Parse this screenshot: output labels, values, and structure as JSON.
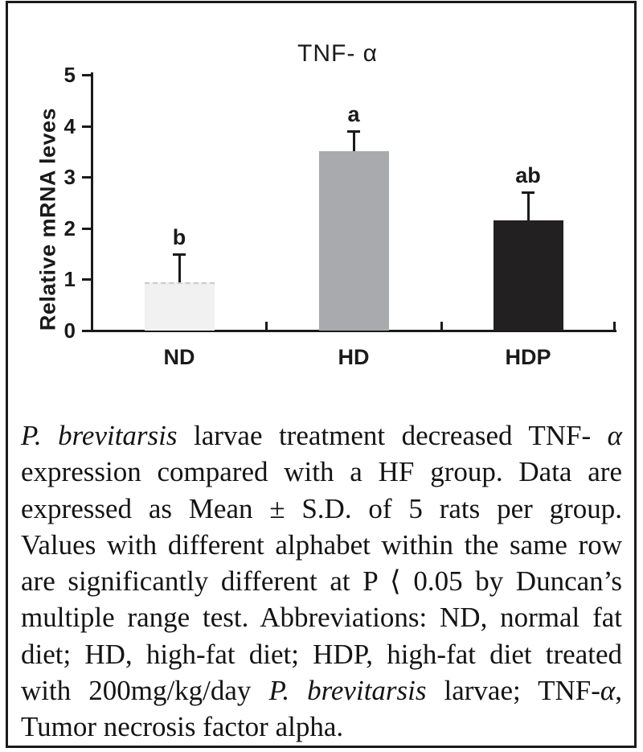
{
  "figure": {
    "background": "#ffffff",
    "border_color": "#1a1a1a"
  },
  "chart_data": {
    "type": "bar",
    "title": "TNF- α",
    "ylabel": "Relative mRNA leves",
    "categories": [
      "ND",
      "HD",
      "HDP"
    ],
    "values": [
      0.95,
      3.5,
      2.15
    ],
    "errors_up": [
      0.55,
      0.4,
      0.55
    ],
    "sig_letters": [
      "b",
      "a",
      "ab"
    ],
    "bar_colors": [
      "#f0f1f0",
      "#a8aaad",
      "#232021"
    ],
    "bar_top_styles": [
      "dotted",
      "solid",
      "solid"
    ],
    "ylim": [
      0,
      5
    ],
    "yticks": [
      0,
      1,
      2,
      3,
      4,
      5
    ],
    "grid": false,
    "legend": "none",
    "axis_color": "#1a1a1a"
  },
  "caption": {
    "lines": [
      [
        {
          "t": "P. brevitarsis",
          "i": true
        },
        {
          "t": " larvae treatment decreased TNF- ",
          "i": false
        },
        {
          "t": "α",
          "i": true
        }
      ],
      [
        {
          "t": "expression compared with a HF group. Data are",
          "i": false
        }
      ],
      [
        {
          "t": "expressed as Mean ± S.D. of 5 rats per group.",
          "i": false
        }
      ],
      [
        {
          "t": "Values with different alphabet within the same row",
          "i": false
        }
      ],
      [
        {
          "t": "are significantly different at P ⟨ 0.05 by Duncan’s",
          "i": false
        }
      ],
      [
        {
          "t": "multiple range test. Abbreviations: ND, normal fat",
          "i": false
        }
      ],
      [
        {
          "t": "diet; HD, high-fat diet; HDP, high-fat diet treated",
          "i": false
        }
      ],
      [
        {
          "t": "with 200mg/kg/day ",
          "i": false
        },
        {
          "t": "P. brevitarsis",
          "i": true
        },
        {
          "t": " larvae; TNF-",
          "i": false
        },
        {
          "t": "α",
          "i": true
        },
        {
          "t": ",",
          "i": false
        }
      ],
      [
        {
          "t": "Tumor necrosis factor alpha.",
          "i": false
        }
      ]
    ]
  }
}
